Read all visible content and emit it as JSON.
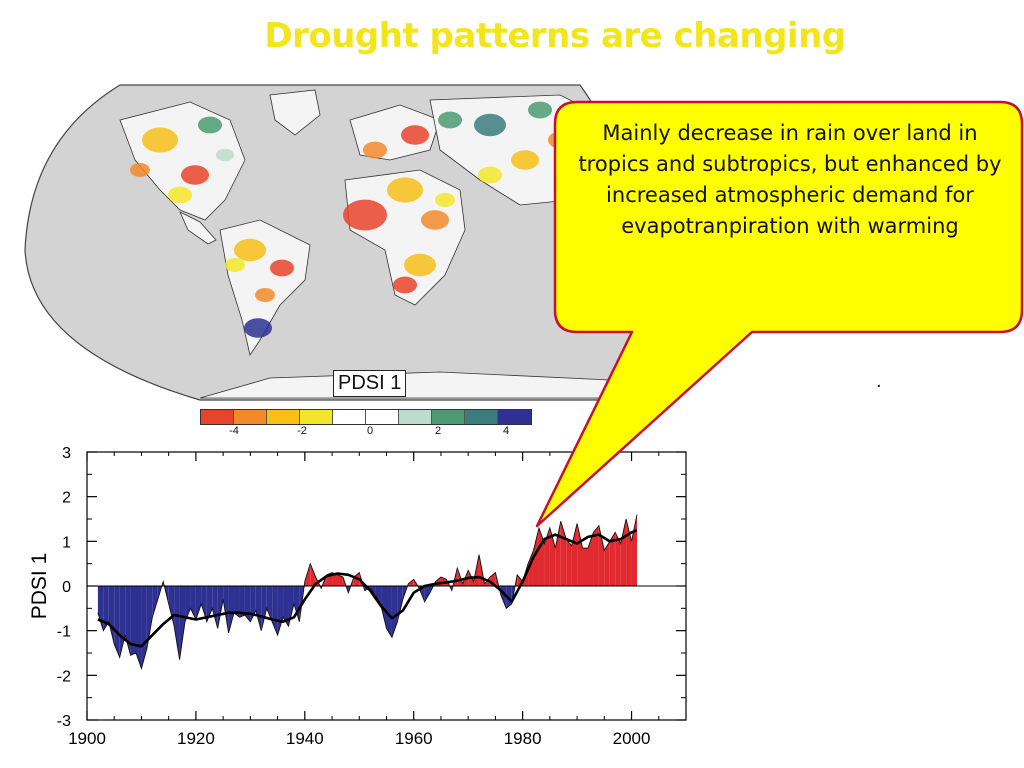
{
  "slide": {
    "title": "Drought patterns are changing",
    "callout_text": "Mainly decrease in rain over land in tropics and subtropics, but enhanced by increased atmospheric demand for evapotranpiration with warming",
    "stray_mark": "."
  },
  "map": {
    "label": "PDSI 1",
    "colorbar": {
      "colors": [
        "#e8432c",
        "#f2892b",
        "#f6c017",
        "#f5e52a",
        "#ffffff",
        "#ffffff",
        "#bcdccc",
        "#4a9a72",
        "#3a7d7d",
        "#2e3192"
      ],
      "tick_labels": [
        "-4",
        "-2",
        "0",
        "2",
        "4"
      ]
    },
    "ocean_color": "#d3d3d3",
    "land_color": "#f4f4f4"
  },
  "chart_data": {
    "type": "area",
    "title": "",
    "xlabel": "",
    "ylabel": "PDSI 1",
    "xlim": [
      1900,
      2010
    ],
    "ylim": [
      -3,
      3
    ],
    "x_ticks": [
      1900,
      1920,
      1940,
      1960,
      1980,
      2000
    ],
    "y_ticks": [
      3,
      2,
      1,
      0,
      -1,
      -2,
      -3
    ],
    "positive_color": "#e02a2f",
    "negative_color": "#2e3192",
    "grid": false,
    "series": [
      {
        "name": "",
        "type": "area",
        "x": [
          1902,
          1903,
          1904,
          1905,
          1906,
          1907,
          1908,
          1909,
          1910,
          1911,
          1912,
          1913,
          1914,
          1915,
          1916,
          1917,
          1918,
          1919,
          1920,
          1921,
          1922,
          1923,
          1924,
          1925,
          1926,
          1927,
          1928,
          1929,
          1930,
          1931,
          1932,
          1933,
          1934,
          1935,
          1936,
          1937,
          1938,
          1939,
          1940,
          1941,
          1942,
          1943,
          1944,
          1945,
          1946,
          1947,
          1948,
          1949,
          1950,
          1951,
          1952,
          1953,
          1954,
          1955,
          1956,
          1957,
          1958,
          1959,
          1960,
          1961,
          1962,
          1963,
          1964,
          1965,
          1966,
          1967,
          1968,
          1969,
          1970,
          1971,
          1972,
          1973,
          1974,
          1975,
          1976,
          1977,
          1978,
          1979,
          1980,
          1981,
          1982,
          1983,
          1984,
          1985,
          1986,
          1987,
          1988,
          1989,
          1990,
          1991,
          1992,
          1993,
          1994,
          1995,
          1996,
          1997,
          1998,
          1999,
          2000,
          2001
        ],
        "y": [
          -0.6,
          -1.0,
          -0.8,
          -1.3,
          -1.6,
          -1.1,
          -1.55,
          -1.5,
          -1.85,
          -1.4,
          -0.7,
          -0.3,
          0.1,
          -0.4,
          -0.9,
          -1.65,
          -0.8,
          -0.5,
          -0.75,
          -0.4,
          -0.8,
          -0.5,
          -0.95,
          -0.3,
          -1.05,
          -0.6,
          -0.7,
          -0.65,
          -0.8,
          -0.55,
          -1.0,
          -0.5,
          -0.8,
          -1.1,
          -0.7,
          -0.9,
          -0.4,
          -0.8,
          0.1,
          0.5,
          0.2,
          -0.05,
          0.25,
          0.3,
          0.25,
          0.2,
          -0.15,
          0.2,
          0.3,
          -0.1,
          -0.05,
          -0.2,
          -0.45,
          -0.95,
          -1.15,
          -0.8,
          -0.3,
          0.05,
          0.15,
          -0.05,
          -0.35,
          -0.15,
          0.1,
          0.2,
          0.15,
          -0.1,
          0.4,
          0.05,
          0.35,
          0.1,
          0.7,
          0.05,
          0.2,
          0.3,
          -0.2,
          -0.5,
          -0.4,
          0.25,
          0.1,
          0.5,
          0.8,
          1.3,
          0.95,
          1.3,
          0.85,
          1.45,
          1.05,
          0.9,
          1.4,
          0.85,
          0.85,
          1.2,
          1.35,
          0.8,
          1.0,
          1.2,
          0.95,
          1.5,
          1.0,
          1.6
        ]
      },
      {
        "name": "",
        "type": "line",
        "x": [
          1902,
          1904,
          1906,
          1908,
          1910,
          1912,
          1914,
          1916,
          1918,
          1920,
          1922,
          1924,
          1926,
          1928,
          1930,
          1932,
          1934,
          1936,
          1938,
          1940,
          1942,
          1944,
          1946,
          1948,
          1950,
          1952,
          1954,
          1956,
          1958,
          1960,
          1962,
          1964,
          1966,
          1968,
          1970,
          1972,
          1974,
          1976,
          1978,
          1980,
          1982,
          1984,
          1986,
          1988,
          1990,
          1992,
          1994,
          1996,
          1998,
          2000,
          2001
        ],
        "y": [
          -0.75,
          -0.85,
          -1.1,
          -1.3,
          -1.35,
          -1.1,
          -0.85,
          -0.65,
          -0.7,
          -0.75,
          -0.7,
          -0.65,
          -0.6,
          -0.6,
          -0.62,
          -0.68,
          -0.75,
          -0.8,
          -0.7,
          -0.3,
          0.05,
          0.22,
          0.28,
          0.25,
          0.15,
          -0.1,
          -0.45,
          -0.72,
          -0.55,
          -0.15,
          0.0,
          0.05,
          0.08,
          0.12,
          0.18,
          0.2,
          0.1,
          -0.1,
          -0.35,
          0.1,
          0.65,
          1.05,
          1.15,
          1.05,
          0.95,
          1.1,
          1.15,
          1.0,
          1.05,
          1.2,
          1.25
        ]
      }
    ]
  }
}
